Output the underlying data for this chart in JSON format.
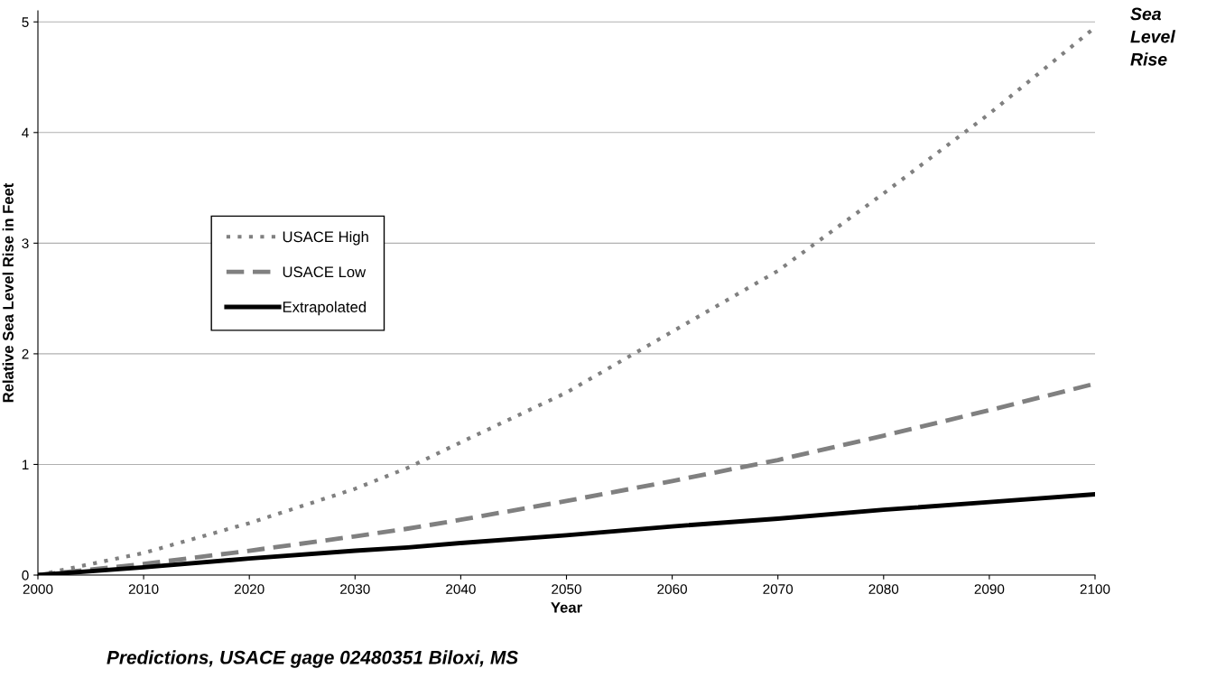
{
  "chart_data": {
    "type": "line",
    "title": "Sea Level Rise",
    "xlabel": "Year",
    "ylabel": "Relative Sea Level Rise in Feet",
    "annotations": [
      "Predictions, USACE gage 02480351 Biloxi, MS"
    ],
    "x": [
      2000,
      2010,
      2020,
      2030,
      2035,
      2040,
      2050,
      2060,
      2070,
      2080,
      2090,
      2100
    ],
    "series": [
      {
        "name": "USACE High",
        "color": "#808080",
        "line_style": "dotted",
        "values": [
          0,
          0.2,
          0.47,
          0.78,
          0.97,
          1.2,
          1.65,
          2.2,
          2.75,
          3.45,
          4.17,
          4.95
        ]
      },
      {
        "name": "USACE Low",
        "color": "#808080",
        "line_style": "dashed",
        "values": [
          0,
          0.1,
          0.22,
          0.35,
          0.42,
          0.5,
          0.67,
          0.85,
          1.04,
          1.26,
          1.49,
          1.73
        ]
      },
      {
        "name": "Extrapolated",
        "color": "#000000",
        "line_style": "solid",
        "values": [
          0,
          0.07,
          0.15,
          0.22,
          0.25,
          0.29,
          0.36,
          0.44,
          0.51,
          0.59,
          0.66,
          0.73
        ]
      }
    ],
    "xlim": [
      2000,
      2100
    ],
    "xticks": [
      2000,
      2010,
      2020,
      2030,
      2040,
      2050,
      2060,
      2070,
      2080,
      2090,
      2100
    ],
    "ylim": [
      0,
      5.1
    ],
    "yticks": [
      0,
      1,
      2,
      3,
      4,
      5
    ],
    "grid": "y",
    "legend": "left",
    "marker": "none"
  }
}
